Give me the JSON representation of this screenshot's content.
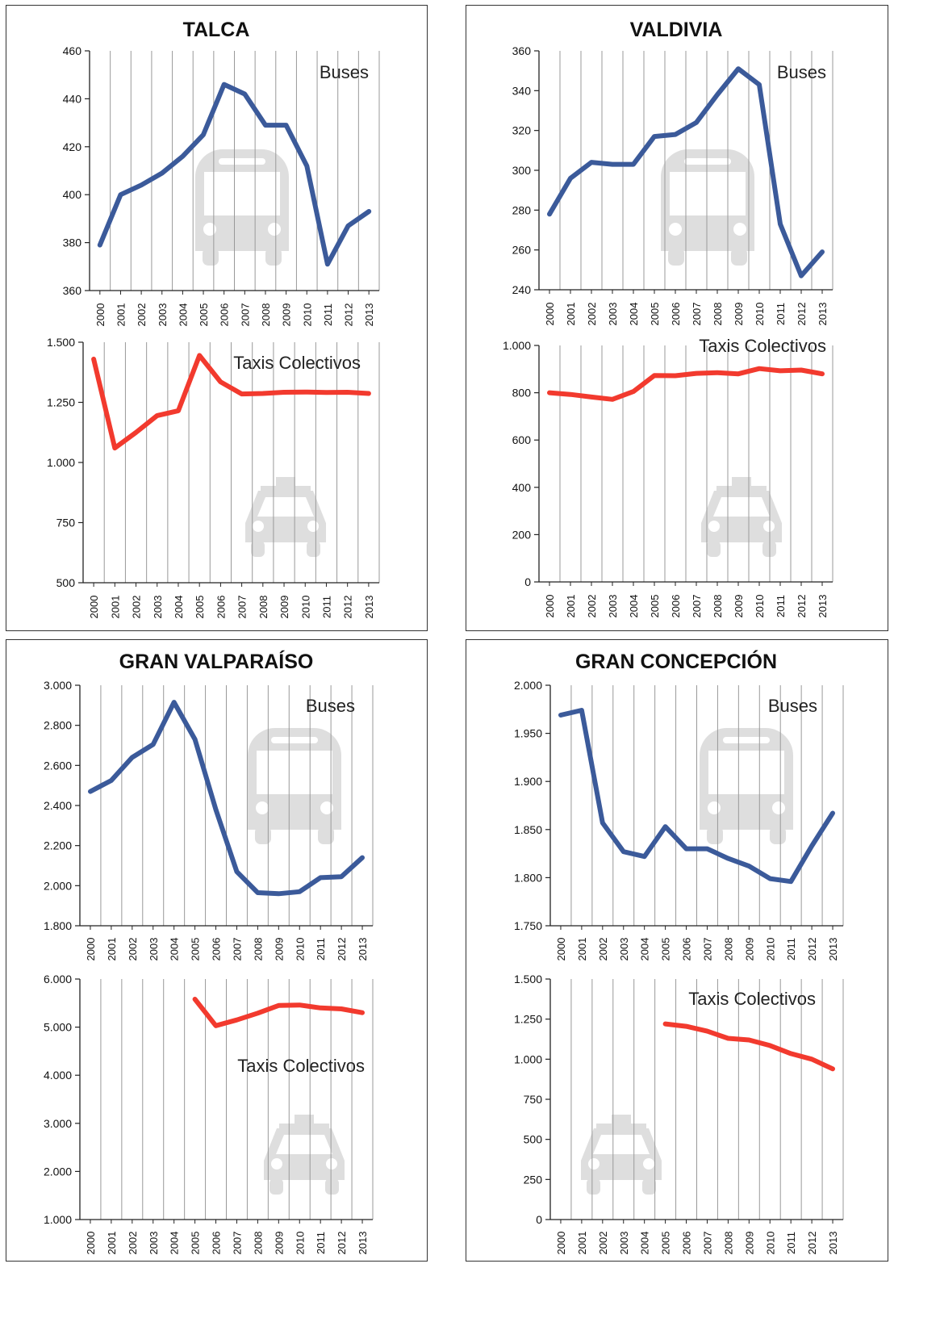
{
  "header_fragment": "",
  "colors": {
    "buses": "#3b5a9a",
    "taxis": "#f23a2e",
    "icon": "#dedede",
    "grid": "#999999",
    "axis": "#222222"
  },
  "icons": {
    "bus": "bus-icon",
    "taxi": "taxi-icon"
  },
  "chart_data": [
    {
      "city": "TALCA",
      "charts": [
        {
          "type": "line",
          "name": "Buses",
          "x": [
            2000,
            2001,
            2002,
            2003,
            2004,
            2005,
            2006,
            2007,
            2008,
            2009,
            2010,
            2011,
            2012,
            2013
          ],
          "values": [
            379,
            400,
            404,
            409,
            416,
            425,
            446,
            442,
            429,
            429,
            412,
            371,
            387,
            393
          ],
          "ylim": [
            360,
            460
          ],
          "yticks": [
            360,
            380,
            400,
            420,
            440,
            460
          ],
          "ytick_labels": [
            "360",
            "380",
            "400",
            "420",
            "440",
            "460"
          ],
          "grid": "vertical"
        },
        {
          "type": "line",
          "name": "Taxis Colectivos",
          "x": [
            2000,
            2001,
            2002,
            2003,
            2004,
            2005,
            2006,
            2007,
            2008,
            2009,
            2010,
            2011,
            2012,
            2013
          ],
          "values": [
            1430,
            1060,
            1125,
            1195,
            1215,
            1445,
            1335,
            1285,
            1287,
            1292,
            1293,
            1291,
            1292,
            1287
          ],
          "ylim": [
            500,
            1500
          ],
          "yticks": [
            500,
            750,
            1000,
            1250,
            1500
          ],
          "ytick_labels": [
            "500",
            "750",
            "1.000",
            "1.250",
            "1.500"
          ],
          "grid": "vertical"
        }
      ]
    },
    {
      "city": "VALDIVIA",
      "charts": [
        {
          "type": "line",
          "name": "Buses",
          "x": [
            2000,
            2001,
            2002,
            2003,
            2004,
            2005,
            2006,
            2007,
            2008,
            2009,
            2010,
            2011,
            2012,
            2013
          ],
          "values": [
            278,
            296,
            304,
            303,
            303,
            317,
            318,
            324,
            338,
            351,
            343,
            273,
            247,
            259
          ],
          "ylim": [
            240,
            360
          ],
          "yticks": [
            240,
            260,
            280,
            300,
            320,
            340,
            360
          ],
          "ytick_labels": [
            "240",
            "260",
            "280",
            "300",
            "320",
            "340",
            "360"
          ],
          "grid": "vertical"
        },
        {
          "type": "line",
          "name": "Taxis Colectivos",
          "x": [
            2000,
            2001,
            2002,
            2003,
            2004,
            2005,
            2006,
            2007,
            2008,
            2009,
            2010,
            2011,
            2012,
            2013
          ],
          "values": [
            800,
            793,
            782,
            772,
            805,
            873,
            872,
            882,
            885,
            880,
            902,
            893,
            896,
            880
          ],
          "ylim": [
            0,
            1000
          ],
          "yticks": [
            0,
            200,
            400,
            600,
            800,
            1000
          ],
          "ytick_labels": [
            "0",
            "200",
            "400",
            "600",
            "800",
            "1.000"
          ],
          "grid": "vertical"
        }
      ]
    },
    {
      "city": "GRAN VALPARAÍSO",
      "charts": [
        {
          "type": "line",
          "name": "Buses",
          "x": [
            2000,
            2001,
            2002,
            2003,
            2004,
            2005,
            2006,
            2007,
            2008,
            2009,
            2010,
            2011,
            2012,
            2013
          ],
          "values": [
            2470,
            2525,
            2640,
            2705,
            2915,
            2730,
            2380,
            2070,
            1965,
            1960,
            1970,
            2040,
            2045,
            2140
          ],
          "ylim": [
            1800,
            3000
          ],
          "yticks": [
            1800,
            2000,
            2200,
            2400,
            2600,
            2800,
            3000
          ],
          "ytick_labels": [
            "1.800",
            "2.000",
            "2.200",
            "2.400",
            "2.600",
            "2.800",
            "3.000"
          ],
          "grid": "vertical"
        },
        {
          "type": "line",
          "name": "Taxis Colectivos",
          "x": [
            2005,
            2006,
            2007,
            2008,
            2009,
            2010,
            2011,
            2012,
            2013
          ],
          "values": [
            5580,
            5030,
            5150,
            5290,
            5450,
            5460,
            5400,
            5380,
            5300
          ],
          "ylim": [
            1000,
            6000
          ],
          "yticks": [
            1000,
            2000,
            3000,
            4000,
            5000,
            6000
          ],
          "ytick_labels": [
            "1.000",
            "2.000",
            "3.000",
            "4.000",
            "5.000",
            "6.000"
          ],
          "grid": "vertical"
        }
      ]
    },
    {
      "city": "GRAN CONCEPCIÓN",
      "charts": [
        {
          "type": "line",
          "name": "Buses",
          "x": [
            2000,
            2001,
            2002,
            2003,
            2004,
            2005,
            2006,
            2007,
            2008,
            2009,
            2010,
            2011,
            2012,
            2013
          ],
          "values": [
            1969,
            1974,
            1857,
            1827,
            1822,
            1853,
            1830,
            1830,
            1820,
            1812,
            1799,
            1796,
            1833,
            1867
          ],
          "ylim": [
            1750,
            2000
          ],
          "yticks": [
            1750,
            1800,
            1850,
            1900,
            1950,
            2000
          ],
          "ytick_labels": [
            "1.750",
            "1.800",
            "1.850",
            "1.900",
            "1.950",
            "2.000"
          ],
          "grid": "vertical"
        },
        {
          "type": "line",
          "name": "Taxis Colectivos",
          "x": [
            2005,
            2006,
            2007,
            2008,
            2009,
            2010,
            2011,
            2012,
            2013
          ],
          "values": [
            1220,
            1205,
            1175,
            1130,
            1120,
            1085,
            1035,
            1000,
            940
          ],
          "ylim": [
            0,
            1500
          ],
          "yticks": [
            0,
            250,
            500,
            750,
            1000,
            1250,
            1500
          ],
          "ytick_labels": [
            "0",
            "250",
            "500",
            "750",
            "1.000",
            "1.250",
            "1.500"
          ],
          "grid": "vertical"
        }
      ]
    }
  ]
}
